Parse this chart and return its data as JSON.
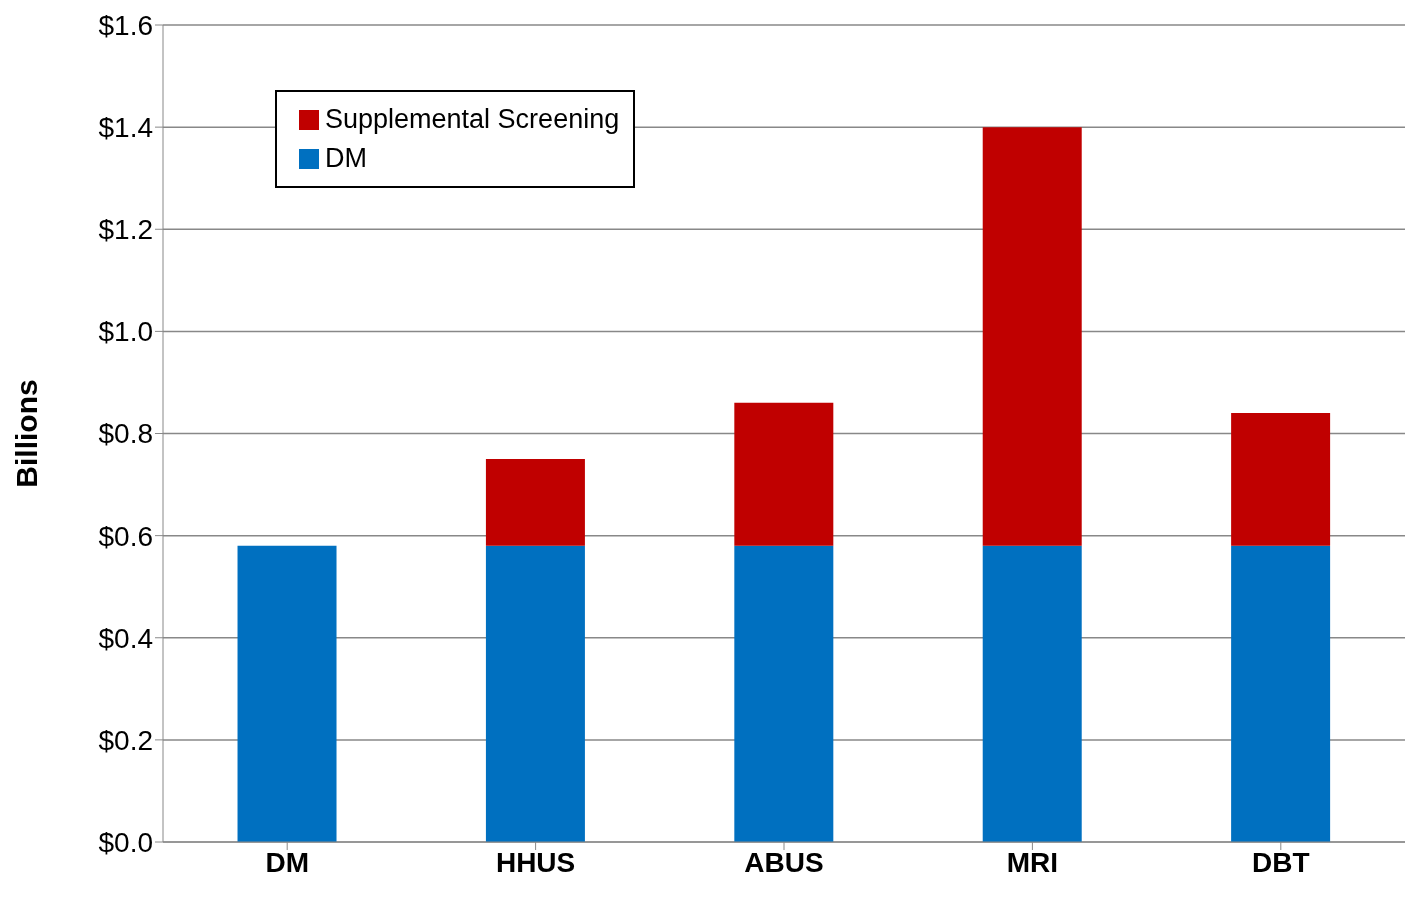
{
  "chart_data": {
    "type": "bar",
    "stacked": true,
    "ylabel": "Billions",
    "categories": [
      "DM",
      "HHUS",
      "ABUS",
      "MRI",
      "DBT"
    ],
    "series": [
      {
        "name": "DM",
        "color": "#0070c0",
        "values": [
          0.58,
          0.58,
          0.58,
          0.58,
          0.58
        ]
      },
      {
        "name": "Supplemental Screening",
        "color": "#c00000",
        "values": [
          null,
          0.17,
          0.28,
          0.82,
          0.26
        ]
      }
    ],
    "ylim": [
      0,
      1.6
    ],
    "yticks": [
      {
        "value": 0,
        "label": "$0.0"
      },
      {
        "value": 0.2,
        "label": "$0.2"
      },
      {
        "value": 0.4,
        "label": "$0.4"
      },
      {
        "value": 0.6,
        "label": "$0.6"
      },
      {
        "value": 0.8,
        "label": "$0.8"
      },
      {
        "value": 1.0,
        "label": "$1.0"
      },
      {
        "value": 1.2,
        "label": "$1.2"
      },
      {
        "value": 1.4,
        "label": "$1.4"
      },
      {
        "value": 1.6,
        "label": "$1.6"
      }
    ],
    "grid": "y",
    "legend": "top left"
  }
}
